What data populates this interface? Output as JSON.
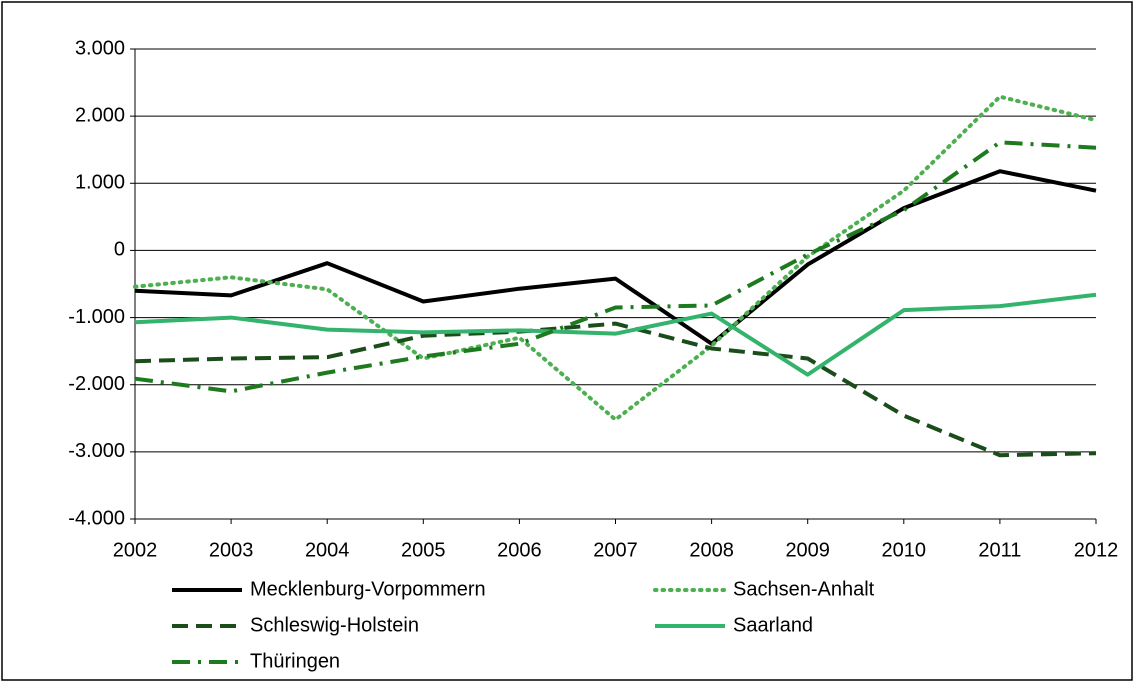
{
  "chart_data": {
    "type": "line",
    "x": [
      2002,
      2003,
      2004,
      2005,
      2006,
      2007,
      2008,
      2009,
      2010,
      2011,
      2012
    ],
    "xlim": [
      2002,
      2012
    ],
    "xticks": [
      2002,
      2003,
      2004,
      2005,
      2006,
      2007,
      2008,
      2009,
      2010,
      2011,
      2012
    ],
    "ylim": [
      -4000,
      3000
    ],
    "yticks": [
      {
        "value": -4000,
        "label": "-4.000"
      },
      {
        "value": -3000,
        "label": "-3.000"
      },
      {
        "value": -2000,
        "label": "-2.000"
      },
      {
        "value": -1000,
        "label": "-1.000"
      },
      0,
      {
        "value": 1000,
        "label": "1.000"
      },
      {
        "value": 2000,
        "label": "2.000"
      },
      {
        "value": 3000,
        "label": "3.000"
      }
    ],
    "grid": true,
    "legend": "bottom",
    "series": [
      {
        "name": "Mecklenburg-Vorpommern",
        "color": "#000000",
        "dash": "solid",
        "values": [
          -600,
          -670,
          -190,
          -760,
          -570,
          -420,
          -1390,
          -210,
          630,
          1180,
          890
        ]
      },
      {
        "name": "Sachsen-Anhalt",
        "color": "#4caf50",
        "dash": "dotted",
        "values": [
          -540,
          -400,
          -580,
          -1610,
          -1300,
          -2520,
          -1420,
          -90,
          890,
          2290,
          1940
        ]
      },
      {
        "name": "Schleswig-Holstein",
        "color": "#1b4d1b",
        "dash": "dashed",
        "values": [
          -1650,
          -1610,
          -1590,
          -1270,
          -1210,
          -1090,
          -1460,
          -1610,
          -2460,
          -3050,
          -3020
        ]
      },
      {
        "name": "Saarland",
        "color": "#33b36b",
        "dash": "solid",
        "values": [
          -1070,
          -1000,
          -1180,
          -1220,
          -1190,
          -1240,
          -940,
          -1850,
          -890,
          -830,
          -660
        ]
      },
      {
        "name": "Thüringen",
        "color": "#1e7a1e",
        "dash": "dashdot",
        "values": [
          -1910,
          -2100,
          -1820,
          -1580,
          -1390,
          -850,
          -820,
          -60,
          600,
          1610,
          1530
        ]
      }
    ]
  }
}
